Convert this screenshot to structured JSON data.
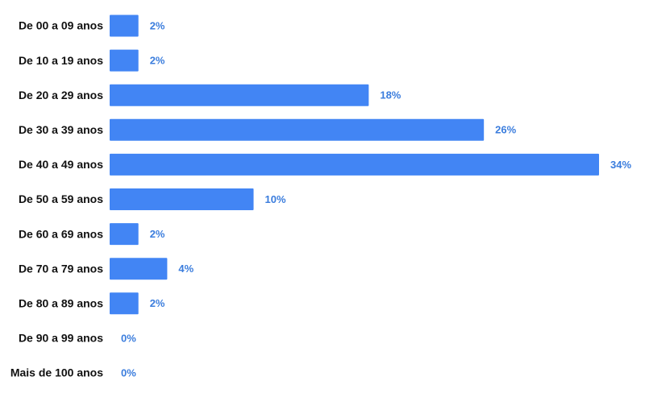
{
  "chart_data": {
    "type": "hbar",
    "categories": [
      "De 00 a 09 anos",
      "De 10 a 19 anos",
      "De 20 a 29 anos",
      "De 30 a 39 anos",
      "De 40 a 49 anos",
      "De 50 a 59 anos",
      "De 60 a 69 anos",
      "De 70 a 79 anos",
      "De 80 a 89 anos",
      "De 90 a 99 anos",
      "Mais de 100 anos"
    ],
    "values": [
      2,
      2,
      18,
      26,
      34,
      10,
      2,
      4,
      2,
      0,
      0
    ],
    "value_labels": [
      "2%",
      "2%",
      "18%",
      "26%",
      "34%",
      "10%",
      "2%",
      "4%",
      "2%",
      "0%",
      "0%"
    ],
    "color": "#4285f4"
  }
}
